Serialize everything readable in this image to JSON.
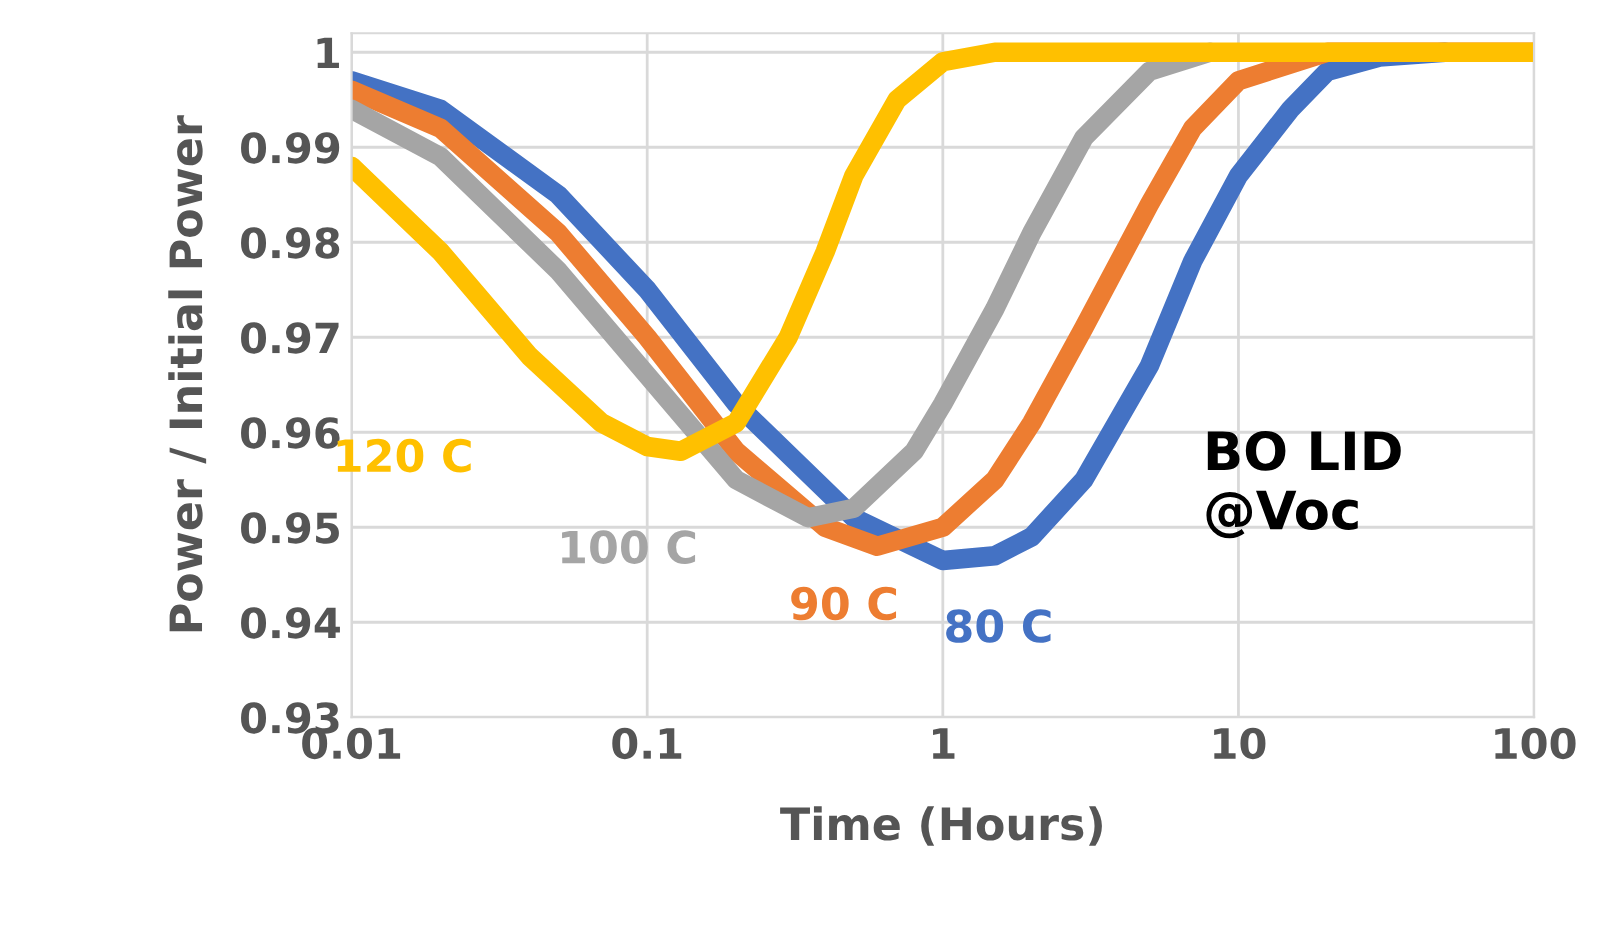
{
  "chart_data": {
    "type": "line",
    "xlabel": "Time (Hours)",
    "ylabel": "Power / Initial Power",
    "log": "x",
    "xlim": [
      0.01,
      100
    ],
    "xticks": [
      0.01,
      0.1,
      1,
      10,
      100
    ],
    "ylim": [
      0.93,
      1.002
    ],
    "yticks": [
      0.93,
      0.94,
      0.95,
      0.96,
      0.97,
      0.98,
      0.99,
      1
    ],
    "grid": true,
    "legend": false,
    "marker": "none",
    "line_style": "solid",
    "series": [
      {
        "name": "80 C",
        "color": "#4472c4",
        "x": [
          0.01,
          0.02,
          0.05,
          0.1,
          0.2,
          0.5,
          1,
          1.5,
          2,
          3,
          5,
          7,
          10,
          15,
          20,
          30,
          50
        ],
        "values": [
          0.997,
          0.994,
          0.985,
          0.975,
          0.963,
          0.951,
          0.9465,
          0.947,
          0.949,
          0.955,
          0.967,
          0.978,
          0.987,
          0.994,
          0.998,
          0.9995,
          1.0
        ]
      },
      {
        "name": "90 C",
        "color": "#ed7d31",
        "x": [
          0.01,
          0.02,
          0.05,
          0.1,
          0.2,
          0.4,
          0.6,
          1,
          1.5,
          2,
          3,
          5,
          7,
          10,
          20,
          50,
          100
        ],
        "values": [
          0.996,
          0.992,
          0.981,
          0.97,
          0.958,
          0.95,
          0.948,
          0.95,
          0.955,
          0.961,
          0.971,
          0.984,
          0.992,
          0.997,
          1.0,
          1.0,
          1.0
        ]
      },
      {
        "name": "100 C",
        "color": "#a5a5a5",
        "x": [
          0.01,
          0.02,
          0.05,
          0.1,
          0.2,
          0.35,
          0.5,
          0.8,
          1,
          1.5,
          2,
          3,
          5,
          8
        ],
        "values": [
          0.994,
          0.989,
          0.977,
          0.966,
          0.955,
          0.951,
          0.952,
          0.958,
          0.963,
          0.973,
          0.981,
          0.991,
          0.998,
          1.0
        ]
      },
      {
        "name": "120 C",
        "color": "#ffc000",
        "x": [
          0.01,
          0.02,
          0.04,
          0.07,
          0.1,
          0.13,
          0.2,
          0.3,
          0.4,
          0.5,
          0.7,
          1,
          1.5,
          3,
          6,
          10,
          20,
          50,
          100
        ],
        "values": [
          0.988,
          0.979,
          0.968,
          0.961,
          0.9585,
          0.958,
          0.961,
          0.97,
          0.979,
          0.987,
          0.995,
          0.999,
          1.0,
          1.0,
          1.0,
          1.0,
          1.0,
          1.0,
          1.0
        ]
      }
    ],
    "annotations": [
      "BO LID\n@Voc"
    ]
  }
}
